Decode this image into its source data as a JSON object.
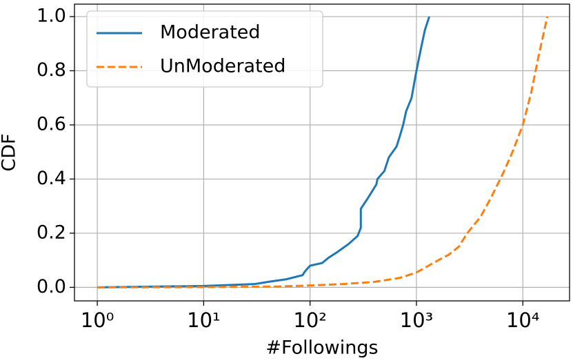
{
  "chart_data": {
    "type": "line",
    "xlabel": "#Followings",
    "ylabel": "CDF",
    "log_x": true,
    "grid": true,
    "legend": "upper left",
    "xlim": [
      0.61,
      27500
    ],
    "ylim": [
      -0.05,
      1.046
    ],
    "xticks": [
      {
        "value": 1,
        "label": "10⁰"
      },
      {
        "value": 10,
        "label": "10¹"
      },
      {
        "value": 100,
        "label": "10²"
      },
      {
        "value": 1000,
        "label": "10³"
      },
      {
        "value": 10000,
        "label": "10⁴"
      }
    ],
    "yticks": [
      {
        "value": 0,
        "label": "0.0"
      },
      0.2,
      0.4,
      0.6,
      0.8,
      {
        "value": 1,
        "label": "1.0"
      }
    ],
    "series": [
      {
        "name": "Moderated",
        "color": "#1f77b4",
        "linestyle": "solid",
        "x": [
          1,
          10,
          30,
          40,
          60,
          85,
          90,
          100,
          130,
          150,
          180,
          230,
          280,
          300,
          300,
          350,
          420,
          430,
          500,
          550,
          650,
          700,
          750,
          800,
          900,
          1000,
          1100,
          1200,
          1320
        ],
        "values": [
          0,
          0.005,
          0.012,
          0.02,
          0.03,
          0.045,
          0.06,
          0.08,
          0.09,
          0.11,
          0.13,
          0.16,
          0.19,
          0.22,
          0.29,
          0.33,
          0.38,
          0.4,
          0.43,
          0.48,
          0.52,
          0.56,
          0.6,
          0.65,
          0.7,
          0.8,
          0.88,
          0.95,
          1.0
        ]
      },
      {
        "name": "UnModerated",
        "color": "#ff7f0e",
        "linestyle": "dashed",
        "x": [
          1,
          10,
          50,
          100,
          200,
          400,
          700,
          1000,
          1300,
          1600,
          2000,
          2500,
          3000,
          4000,
          5000,
          6500,
          8000,
          10000,
          12000,
          14000,
          17000
        ],
        "values": [
          0,
          0.001,
          0.003,
          0.007,
          0.012,
          0.02,
          0.035,
          0.055,
          0.08,
          0.1,
          0.12,
          0.15,
          0.2,
          0.26,
          0.33,
          0.42,
          0.5,
          0.6,
          0.72,
          0.85,
          1.0
        ]
      }
    ]
  }
}
